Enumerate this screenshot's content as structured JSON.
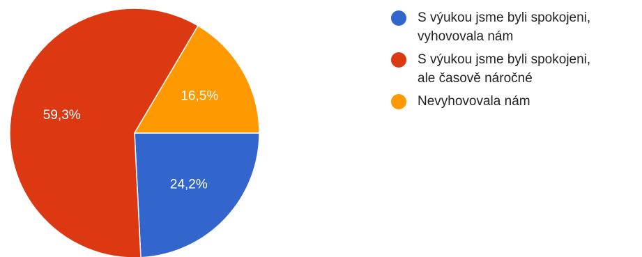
{
  "chart_data": {
    "type": "pie",
    "categories": [
      "S výukou jsme byli spokojeni, vyhovovala nám",
      "S výukou jsme byli spokojeni, ale časově náročné",
      "Nevyhovovala nám"
    ],
    "values": [
      24.2,
      59.3,
      16.5
    ],
    "value_labels": [
      "24,2%",
      "59,3%",
      "16,5%"
    ],
    "colors": [
      "#3366cc",
      "#dc3912",
      "#ff9900"
    ],
    "start_angle_deg": 90,
    "direction": "clockwise",
    "legend": "right"
  },
  "legend": {
    "items": [
      {
        "label_line1": "S výukou jsme byli spokojeni,",
        "label_line2": "vyhovovala nám"
      },
      {
        "label_line1": "S výukou jsme byli spokojeni,",
        "label_line2": "ale časově náročné"
      },
      {
        "label_line1": "Nevyhovovala nám",
        "label_line2": ""
      }
    ]
  }
}
